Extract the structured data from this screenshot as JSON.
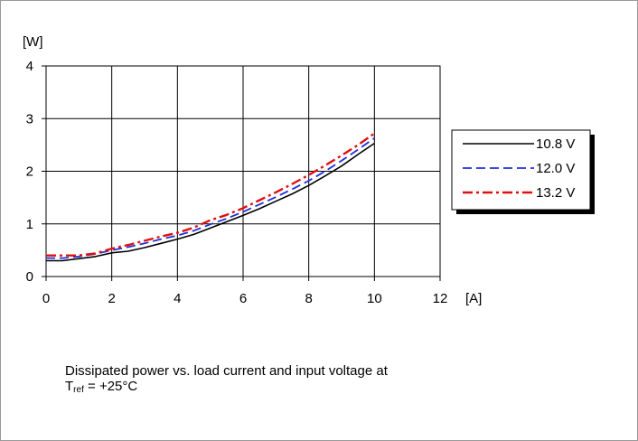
{
  "chart_data": {
    "type": "line",
    "title": "",
    "xlabel": "[A]",
    "ylabel": "[W]",
    "xlim": [
      0,
      12
    ],
    "ylim": [
      0,
      4
    ],
    "x_ticks": [
      "0",
      "2",
      "4",
      "6",
      "8",
      "10",
      "12"
    ],
    "y_ticks": [
      "0",
      "1",
      "2",
      "3",
      "4"
    ],
    "grid": true,
    "legend_position": "right",
    "series": [
      {
        "name": "10.8 V",
        "color": "#000000",
        "dash": "solid",
        "x": [
          0,
          0.5,
          1,
          1.5,
          2,
          2.5,
          3,
          3.5,
          4,
          4.5,
          5,
          5.5,
          6,
          6.5,
          7,
          7.5,
          8,
          8.5,
          9,
          9.5,
          10
        ],
        "y": [
          0.3,
          0.3,
          0.34,
          0.38,
          0.45,
          0.48,
          0.55,
          0.63,
          0.71,
          0.8,
          0.92,
          1.04,
          1.16,
          1.29,
          1.43,
          1.57,
          1.73,
          1.91,
          2.1,
          2.32,
          2.53
        ]
      },
      {
        "name": "12.0 V",
        "color": "#1f2fd6",
        "dash": "dashed",
        "x": [
          0,
          0.5,
          1,
          1.5,
          2,
          2.5,
          3,
          3.5,
          4,
          4.5,
          5,
          5.5,
          6,
          6.5,
          7,
          7.5,
          8,
          8.5,
          9,
          9.5,
          10
        ],
        "y": [
          0.35,
          0.35,
          0.38,
          0.43,
          0.5,
          0.56,
          0.63,
          0.71,
          0.78,
          0.87,
          0.99,
          1.1,
          1.23,
          1.37,
          1.51,
          1.66,
          1.82,
          2.0,
          2.2,
          2.41,
          2.63
        ]
      },
      {
        "name": "13.2 V",
        "color": "#e01010",
        "dash": "dash-dot",
        "x": [
          0,
          0.5,
          1,
          1.5,
          2,
          2.5,
          3,
          3.5,
          4,
          4.5,
          5,
          5.5,
          6,
          6.5,
          7,
          7.5,
          8,
          8.5,
          9,
          9.5,
          10
        ],
        "y": [
          0.4,
          0.4,
          0.4,
          0.44,
          0.53,
          0.6,
          0.68,
          0.76,
          0.83,
          0.93,
          1.07,
          1.17,
          1.3,
          1.45,
          1.6,
          1.76,
          1.93,
          2.11,
          2.3,
          2.5,
          2.72
        ]
      }
    ],
    "caption_line1": "Dissipated power vs. load current and input voltage at",
    "caption_t": "T",
    "caption_sub": "ref",
    "caption_rest": " = +25°C"
  }
}
